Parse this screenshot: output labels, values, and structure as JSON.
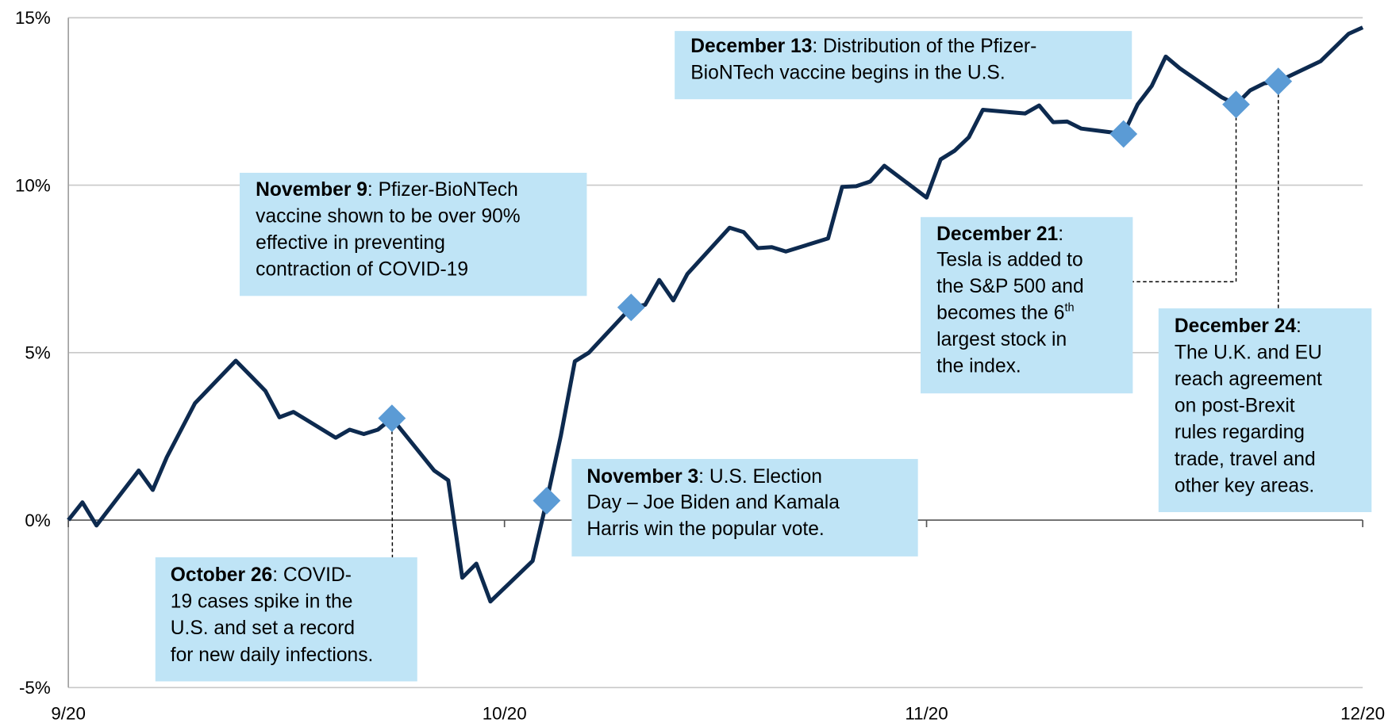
{
  "chart_data": {
    "type": "line",
    "x": [
      0,
      1,
      2,
      5,
      6,
      7,
      9,
      11.9,
      13,
      14,
      15,
      16,
      19,
      20,
      21,
      22,
      23,
      26,
      27,
      28,
      29,
      30,
      33,
      34,
      35,
      36,
      37,
      40,
      41,
      42,
      43,
      44,
      47,
      48,
      49,
      50,
      51,
      54,
      55,
      56,
      57,
      58,
      61,
      62,
      63,
      64,
      65,
      68,
      69,
      70,
      71,
      72,
      75,
      76,
      77,
      78,
      79,
      82,
      83,
      84,
      85,
      86,
      89,
      91,
      92
    ],
    "series": [
      {
        "color": "#0d2a4f",
        "values": [
          0,
          0.53,
          -0.16,
          1.48,
          0.9,
          1.88,
          3.49,
          4.76,
          4.29,
          3.86,
          3.07,
          3.23,
          2.46,
          2.7,
          2.57,
          2.7,
          3.04,
          1.48,
          1.19,
          -1.72,
          -1.3,
          -2.43,
          -1.22,
          0.58,
          2.51,
          4.74,
          5.0,
          6.35,
          6.43,
          7.17,
          6.56,
          7.35,
          8.73,
          8.6,
          8.12,
          8.15,
          8.02,
          8.41,
          9.95,
          9.97,
          10.11,
          10.58,
          9.63,
          10.77,
          11.03,
          11.43,
          12.25,
          12.14,
          12.38,
          11.88,
          11.9,
          11.69,
          11.53,
          12.41,
          12.96,
          13.84,
          13.49,
          12.62,
          12.41,
          12.83,
          13.04,
          13.1,
          13.7,
          14.52,
          14.71
        ]
      }
    ],
    "xlim": [
      0,
      92
    ],
    "xticks": [
      {
        "value": 0,
        "label": "9/20"
      },
      {
        "value": 31,
        "label": "10/20"
      },
      {
        "value": 61,
        "label": "11/20"
      },
      {
        "value": 92,
        "label": "12/20"
      }
    ],
    "ylim": [
      -5,
      15
    ],
    "yticks": [
      {
        "value": -5,
        "label": "-5%"
      },
      {
        "value": 0,
        "label": "0%"
      },
      {
        "value": 5,
        "label": "5%"
      },
      {
        "value": 10,
        "label": "10%"
      },
      {
        "value": 15,
        "label": "15%"
      }
    ],
    "grid": true,
    "marker_color": "#5b9bd5",
    "annotations": [
      {
        "title": "October 26",
        "x": 23,
        "y": 3.04,
        "lines": [
          ": COVID-",
          "19 cases spike in the",
          "U.S. and set a record",
          "for new daily infections."
        ]
      },
      {
        "title": "November 3",
        "x": 34,
        "y": 0.58,
        "lines": [
          ":  U.S. Election",
          "Day – Joe Biden and Kamala",
          "Harris win the popular vote."
        ]
      },
      {
        "title": "November 9",
        "x": 40,
        "y": 6.35,
        "lines": [
          ":  Pfizer-BioNTech",
          "vaccine shown to be over 90%",
          "effective in preventing",
          "contraction of COVID-19"
        ]
      },
      {
        "title": "December 13",
        "x": 75,
        "y": 11.53,
        "lines": [
          ":  Distribution of the Pfizer-",
          "BioNTech vaccine begins in the U.S."
        ]
      },
      {
        "title": "December 21",
        "x": 83,
        "y": 12.41,
        "lines": [
          ":",
          "Tesla is added to",
          "the S&P 500 and",
          [
            "becomes the 6",
            "th"
          ],
          "largest stock in",
          "the index."
        ]
      },
      {
        "title": "December 24",
        "x": 86,
        "y": 13.1,
        "lines": [
          ":",
          "The U.K. and EU",
          "reach agreement",
          "on post-Brexit",
          "rules regarding",
          "trade, travel and",
          "other key areas."
        ]
      }
    ]
  }
}
